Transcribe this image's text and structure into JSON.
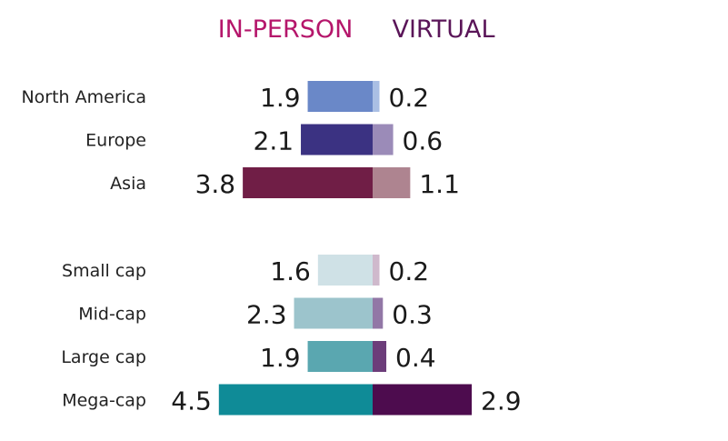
{
  "legend": {
    "in_person": "IN-PERSON",
    "virtual": "VIRTUAL",
    "in_person_color": "#b5166b",
    "virtual_color": "#5a1558"
  },
  "chart_data": {
    "type": "bar",
    "orientation": "horizontal-diverging",
    "series": [
      {
        "name": "IN-PERSON",
        "direction": "left"
      },
      {
        "name": "VIRTUAL",
        "direction": "right"
      }
    ],
    "groups": [
      {
        "rows": [
          {
            "label": "North America",
            "in_person": 1.9,
            "virtual": 0.2,
            "in_person_color": "#6a88c8",
            "virtual_color": "#aabfe4"
          },
          {
            "label": "Europe",
            "in_person": 2.1,
            "virtual": 0.6,
            "in_person_color": "#3b3282",
            "virtual_color": "#9b8bb8"
          },
          {
            "label": "Asia",
            "in_person": 3.8,
            "virtual": 1.1,
            "in_person_color": "#701e46",
            "virtual_color": "#ae8490"
          }
        ]
      },
      {
        "rows": [
          {
            "label": "Small cap",
            "in_person": 1.6,
            "virtual": 0.2,
            "in_person_color": "#cfe1e6",
            "virtual_color": "#cfb9cc"
          },
          {
            "label": "Mid-cap",
            "in_person": 2.3,
            "virtual": 0.3,
            "in_person_color": "#9cc4cc",
            "virtual_color": "#9277a6"
          },
          {
            "label": "Large cap",
            "in_person": 1.9,
            "virtual": 0.4,
            "in_person_color": "#5aa7b0",
            "virtual_color": "#6c3d7a"
          },
          {
            "label": "Mega-cap",
            "in_person": 4.5,
            "virtual": 2.9,
            "in_person_color": "#0f8b97",
            "virtual_color": "#4d0c4e"
          }
        ]
      }
    ]
  }
}
